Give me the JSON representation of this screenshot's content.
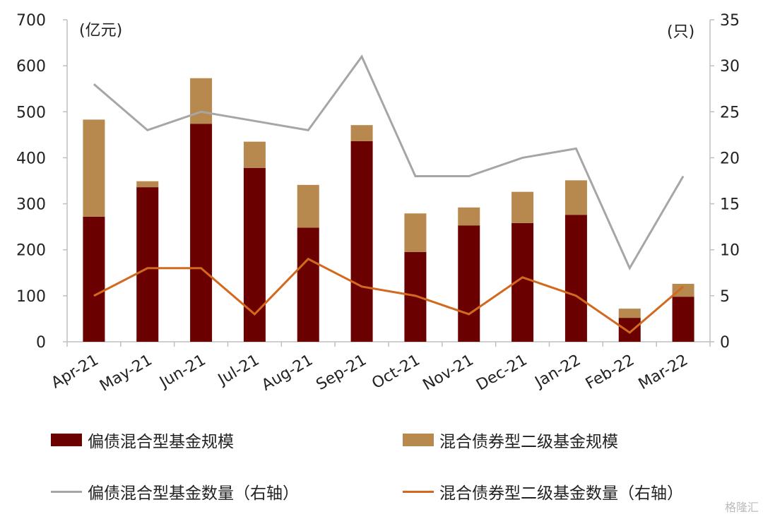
{
  "chart_data": {
    "type": "bar",
    "stacked": true,
    "categories": [
      "Apr-21",
      "May-21",
      "Jun-21",
      "Jul-21",
      "Aug-21",
      "Sep-21",
      "Oct-21",
      "Nov-21",
      "Dec-21",
      "Jan-22",
      "Feb-22",
      "Mar-22"
    ],
    "left_unit": "(亿元)",
    "right_unit": "(只)",
    "ylim": [
      0,
      700
    ],
    "y2lim": [
      0,
      35
    ],
    "yticks": [
      0,
      100,
      200,
      300,
      400,
      500,
      600,
      700
    ],
    "y2ticks": [
      0,
      5,
      10,
      15,
      20,
      25,
      30,
      35
    ],
    "series": [
      {
        "name": "偏债混合型基金规模",
        "kind": "bar",
        "axis": "left",
        "color": "#6b0000",
        "values": [
          272,
          336,
          474,
          378,
          248,
          436,
          195,
          253,
          258,
          276,
          52,
          98
        ]
      },
      {
        "name": "混合债券型二级基金规模",
        "kind": "bar",
        "axis": "left",
        "color": "#b8894f",
        "values": [
          211,
          13,
          99,
          57,
          93,
          35,
          84,
          39,
          68,
          75,
          20,
          28
        ]
      },
      {
        "name": "偏债混合型基金数量（右轴）",
        "kind": "line",
        "axis": "right",
        "color": "#a6a6a6",
        "values": [
          28,
          23,
          25,
          24,
          23,
          31,
          18,
          18,
          20,
          21,
          8,
          18
        ]
      },
      {
        "name": "混合债券型二级基金数量（右轴）",
        "kind": "line",
        "axis": "right",
        "color": "#d2691e",
        "values": [
          5,
          8,
          8,
          3,
          9,
          6,
          5,
          3,
          7,
          5,
          1,
          6
        ]
      }
    ]
  },
  "watermark": "格隆汇"
}
